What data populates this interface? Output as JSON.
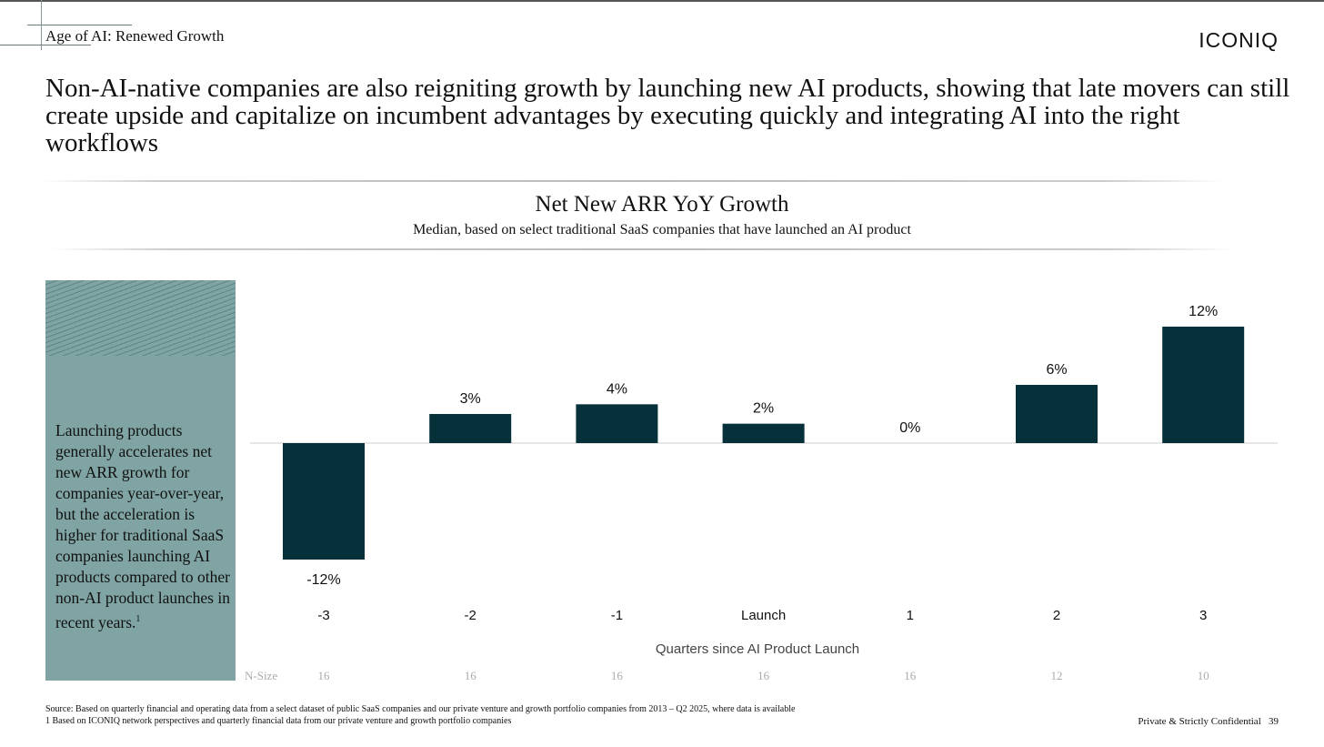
{
  "header": {
    "section": "Age of AI: Renewed Growth",
    "logo": "ICONIQ"
  },
  "headline": "Non-AI-native companies are also reigniting growth by launching new AI products, showing that late movers can still create upside and capitalize on incumbent advantages by executing quickly and integrating AI into the right workflows",
  "sidebar": {
    "text": "Launching products generally accelerates net new ARR growth for companies year-over-year, but the acceleration is higher for traditional SaaS companies launching AI products compared to other non-AI product launches in recent years.",
    "footnote_marker": "1"
  },
  "chart_data": {
    "type": "bar",
    "title": "Net New ARR YoY Growth",
    "subtitle": "Median, based on select traditional SaaS companies that have launched an AI product",
    "xlabel": "Quarters since AI Product Launch",
    "categories": [
      "-3",
      "-2",
      "-1",
      "Launch",
      "1",
      "2",
      "3"
    ],
    "values": [
      -12,
      3,
      4,
      2,
      0,
      6,
      12
    ],
    "data_labels": [
      "-12%",
      "3%",
      "4%",
      "2%",
      "0%",
      "6%",
      "12%"
    ],
    "n_size_label": "N-Size",
    "n_size": [
      "16",
      "16",
      "16",
      "16",
      "16",
      "12",
      "10"
    ],
    "ylim": [
      -12,
      12
    ],
    "grid": false,
    "bar_color": "#06303a"
  },
  "footer": {
    "source": "Source: Based on quarterly financial and operating data from a select dataset of public SaaS companies and our private venture and growth portfolio companies from 2013 – Q2 2025, where data is available",
    "note1": "1 Based on ICONIQ network perspectives and quarterly financial data from our private venture and growth portfolio companies",
    "confidential": "Private & Strictly Confidential",
    "page": "39"
  }
}
